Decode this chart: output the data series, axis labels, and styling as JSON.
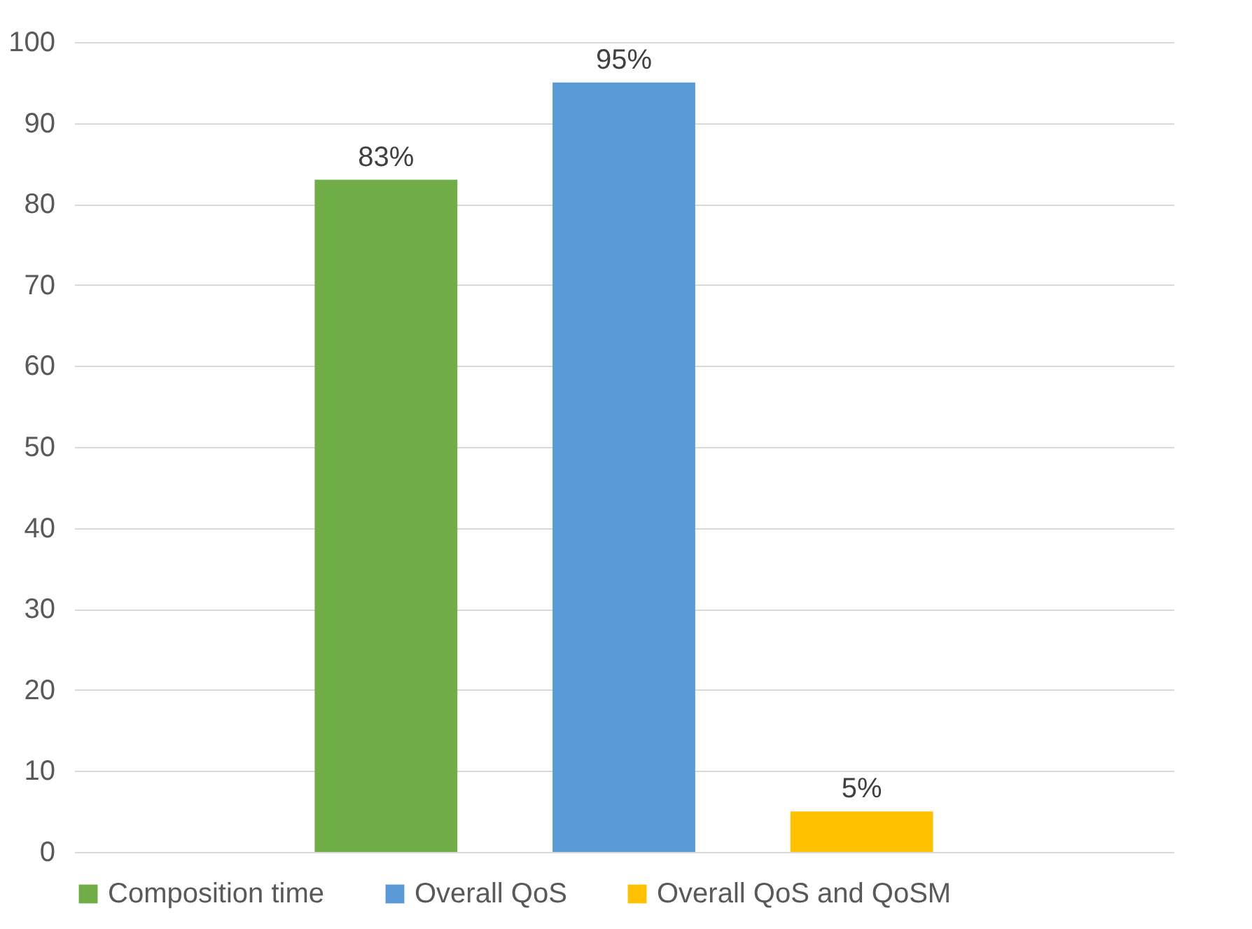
{
  "chart_data": {
    "type": "bar",
    "categories": [
      null
    ],
    "series": [
      {
        "name": "Composition time",
        "color": "#70ad47",
        "values": [
          83
        ],
        "value_labels": [
          "83%"
        ]
      },
      {
        "name": "Overall QoS",
        "color": "#5b9bd5",
        "values": [
          95
        ],
        "value_labels": [
          "95%"
        ]
      },
      {
        "name": "Overall QoS and QoSM",
        "color": "#ffc000",
        "values": [
          5
        ],
        "value_labels": [
          "5%"
        ]
      }
    ],
    "ylim": [
      0,
      100
    ],
    "yticks": [
      0,
      10,
      20,
      30,
      40,
      50,
      60,
      70,
      80,
      90,
      100
    ],
    "grid": "y",
    "legend": "bottom"
  }
}
